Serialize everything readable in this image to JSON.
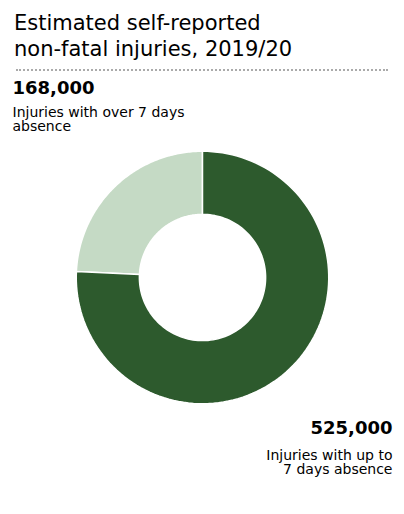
{
  "chart_data": {
    "type": "donut",
    "title": "Estimated self-reported\nnon-fatal injuries, 2019/20",
    "categories": [
      "Injuries with over 7 days\nabsence",
      "Injuries with up to\n7 days absence"
    ],
    "values": [
      168000,
      525000
    ],
    "value_labels": [
      "168,000",
      "525,000"
    ],
    "colors": [
      "#c5dac5",
      "#2d5a2d"
    ],
    "data_labels": true
  }
}
